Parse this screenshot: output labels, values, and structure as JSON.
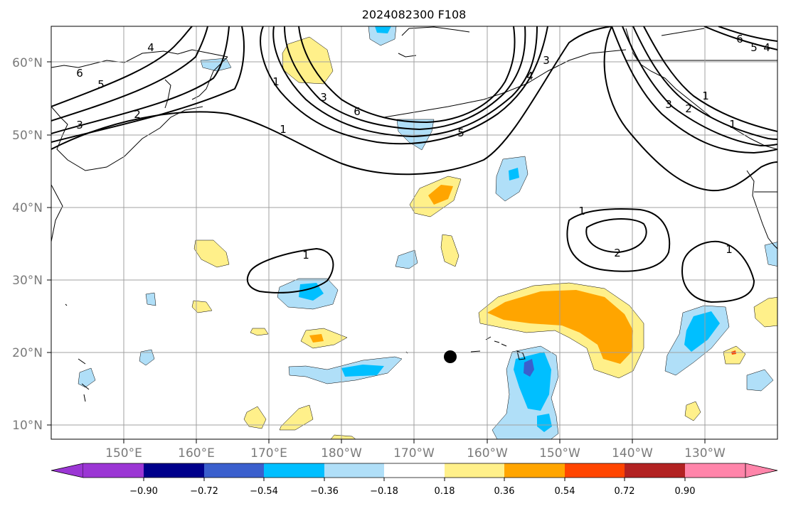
{
  "title": "2024082300 F108",
  "lat_labels": [
    "60°N",
    "50°N",
    "40°N",
    "30°N",
    "20°N",
    "10°N"
  ],
  "lon_labels": [
    "150°E",
    "160°E",
    "170°E",
    "180°W",
    "170°W",
    "160°W",
    "150°W",
    "140°W",
    "130°W"
  ],
  "colorbar": {
    "tick_labels": [
      "−0.90",
      "−0.72",
      "−0.54",
      "−0.36",
      "−0.18",
      "0.18",
      "0.36",
      "0.54",
      "0.72",
      "0.90"
    ],
    "colors": [
      "#9b36d4",
      "#00008b",
      "#3a5fcd",
      "#00bfff",
      "#b0dff8",
      "#ffffff",
      "#fff08a",
      "#ffa500",
      "#ff4500",
      "#b22222",
      "#ff85aa"
    ]
  },
  "contour_labels": [
    "6",
    "5",
    "3",
    "2",
    "1",
    "4",
    "1",
    "3",
    "6",
    "5",
    "4",
    "3",
    "6",
    "5",
    "4",
    "1",
    "3",
    "2",
    "1",
    "1",
    "1",
    "2",
    "1"
  ],
  "marker": {
    "lon": "165°W",
    "lat": "19.5°N"
  }
}
